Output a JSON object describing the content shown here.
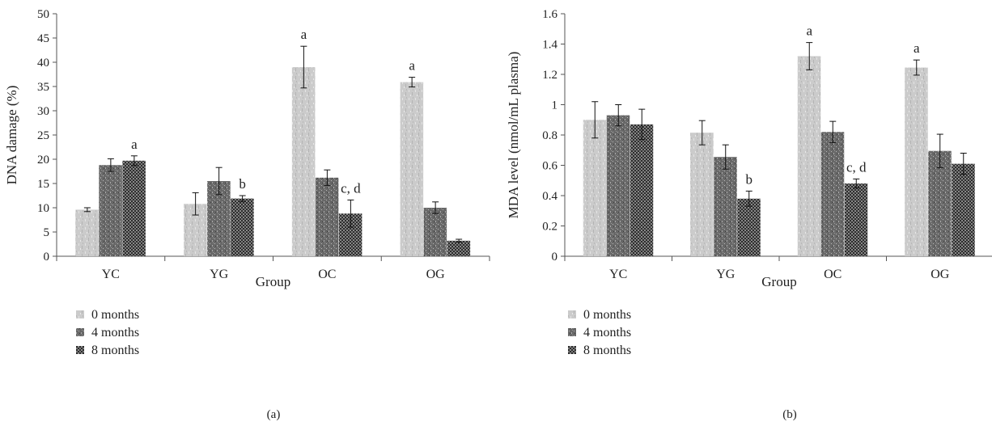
{
  "chart_data": [
    {
      "type": "bar",
      "panel_label": "(a)",
      "xlabel": "Group",
      "ylabel": "DNA damage (%)",
      "categories": [
        "YC",
        "YG",
        "OC",
        "OG"
      ],
      "ylim": [
        0,
        50
      ],
      "yticks": [
        0,
        5,
        10,
        15,
        20,
        25,
        30,
        35,
        40,
        45,
        50
      ],
      "grid": false,
      "legend_position": "bottom-left",
      "series": [
        {
          "name": "0 months",
          "values": [
            9.6,
            10.8,
            39.0,
            35.9
          ],
          "errors": [
            0.4,
            2.3,
            4.3,
            1.0
          ]
        },
        {
          "name": "4 months",
          "values": [
            18.8,
            15.5,
            16.2,
            10.0
          ],
          "errors": [
            1.3,
            2.8,
            1.6,
            1.2
          ]
        },
        {
          "name": "8 months",
          "values": [
            19.7,
            11.9,
            8.8,
            3.2
          ],
          "errors": [
            1.0,
            0.6,
            2.8,
            0.3
          ]
        }
      ],
      "annotations": [
        {
          "category": "YC",
          "series": "8 months",
          "text": "a"
        },
        {
          "category": "YG",
          "series": "8 months",
          "text": "b"
        },
        {
          "category": "OC",
          "series": "0 months",
          "text": "a"
        },
        {
          "category": "OC",
          "series": "8 months",
          "text": "c, d"
        },
        {
          "category": "OG",
          "series": "0 months",
          "text": "a"
        }
      ]
    },
    {
      "type": "bar",
      "panel_label": "(b)",
      "xlabel": "Group",
      "ylabel": "MDA level (nmol/mL plasma)",
      "categories": [
        "YC",
        "YG",
        "OC",
        "OG"
      ],
      "ylim": [
        0,
        1.6
      ],
      "yticks": [
        "0",
        "0.2",
        "0.4",
        "0.6",
        "0.8",
        "1",
        "1.2",
        "1.4",
        "1.6"
      ],
      "grid": false,
      "legend_position": "bottom-left",
      "series": [
        {
          "name": "0 months",
          "values": [
            0.9,
            0.815,
            1.32,
            1.245
          ],
          "errors": [
            0.12,
            0.08,
            0.09,
            0.05
          ]
        },
        {
          "name": "4 months",
          "values": [
            0.93,
            0.655,
            0.82,
            0.695
          ],
          "errors": [
            0.07,
            0.08,
            0.07,
            0.11
          ]
        },
        {
          "name": "8 months",
          "values": [
            0.87,
            0.38,
            0.48,
            0.61
          ],
          "errors": [
            0.1,
            0.05,
            0.03,
            0.07
          ]
        }
      ],
      "annotations": [
        {
          "category": "YG",
          "series": "8 months",
          "text": "b"
        },
        {
          "category": "OC",
          "series": "0 months",
          "text": "a"
        },
        {
          "category": "OC",
          "series": "8 months",
          "text": "c, d"
        },
        {
          "category": "OG",
          "series": "0 months",
          "text": "a"
        }
      ]
    }
  ],
  "colors": {
    "series_0": "#c9c9c9",
    "series_1": "#6e6e6e",
    "series_2": "#3c3c3c",
    "axis": "#555555"
  }
}
